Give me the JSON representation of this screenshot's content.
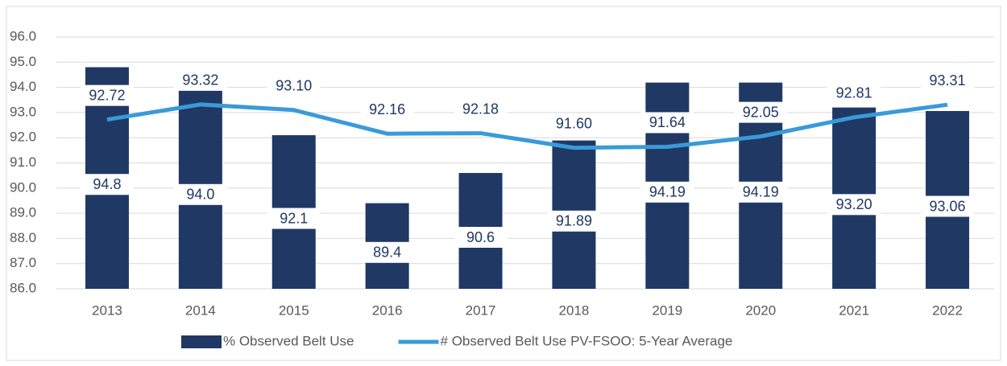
{
  "chart_data": {
    "type": "combo",
    "categories": [
      "2013",
      "2014",
      "2015",
      "2016",
      "2017",
      "2018",
      "2019",
      "2020",
      "2021",
      "2022"
    ],
    "series": [
      {
        "name": "% Observed Belt Use",
        "type": "bar",
        "color": "#203864",
        "values": [
          94.8,
          94.0,
          92.1,
          89.4,
          90.6,
          91.89,
          94.19,
          94.19,
          93.2,
          93.06
        ],
        "value_labels": [
          "94.8",
          "94.0",
          "92.1",
          "89.4",
          "90.6",
          "91.89",
          "94.19",
          "94.19",
          "93.20",
          "93.06"
        ]
      },
      {
        "name": "# Observed Belt Use PV-FSOO: 5-Year Average",
        "type": "line",
        "color": "#3a9ad9",
        "values": [
          92.72,
          93.32,
          93.1,
          92.16,
          92.18,
          91.6,
          91.64,
          92.05,
          92.81,
          93.31
        ],
        "value_labels": [
          "92.72",
          "93.32",
          "93.10",
          "92.16",
          "92.18",
          "91.60",
          "91.64",
          "92.05",
          "92.81",
          "93.31"
        ]
      }
    ],
    "ylim": [
      86,
      96
    ],
    "yticks": [
      {
        "value": 86,
        "label": "86.0"
      },
      {
        "value": 87,
        "label": "87.0"
      },
      {
        "value": 88,
        "label": "88.0"
      },
      {
        "value": 89,
        "label": "89.0"
      },
      {
        "value": 90,
        "label": "90.0"
      },
      {
        "value": 91,
        "label": "91.0"
      },
      {
        "value": 92,
        "label": "92.0"
      },
      {
        "value": 93,
        "label": "93.0"
      },
      {
        "value": 94,
        "label": "94.0"
      },
      {
        "value": 95,
        "label": "95.0"
      },
      {
        "value": 96,
        "label": "96.0"
      }
    ],
    "grid": true,
    "legend": "bottom"
  }
}
